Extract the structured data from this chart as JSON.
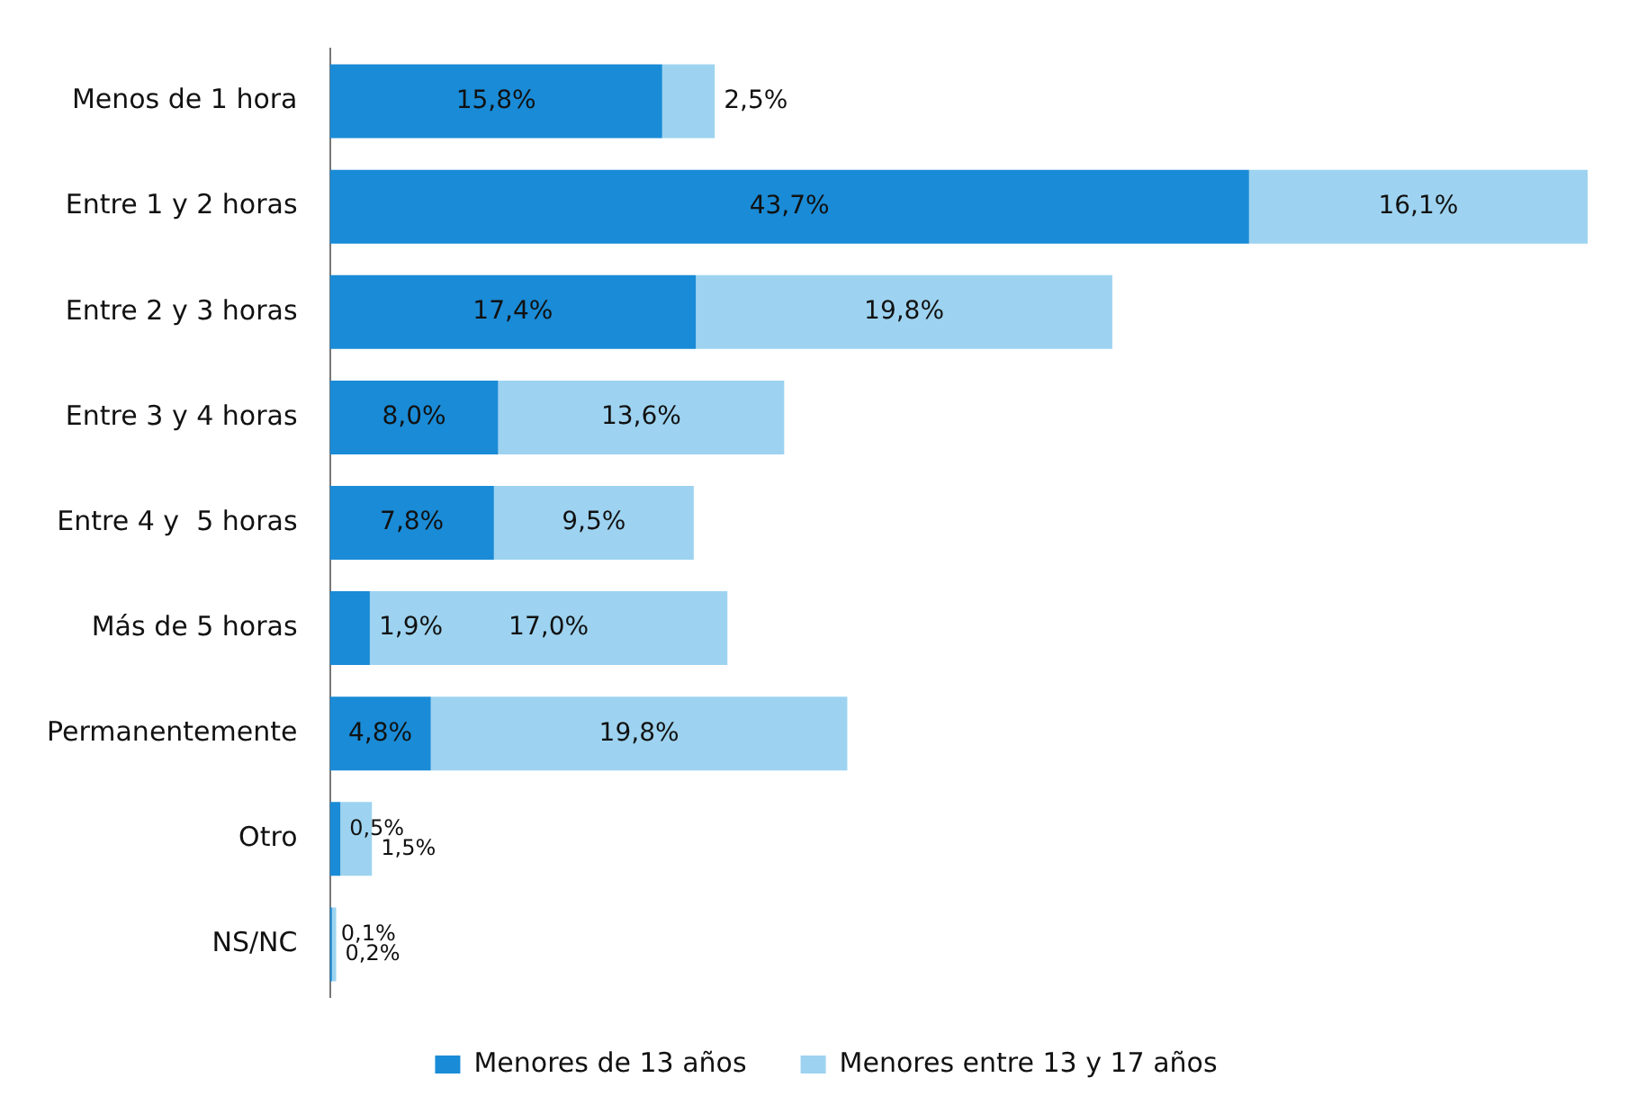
{
  "chart_data": {
    "type": "bar",
    "orientation": "horizontal",
    "stacked": true,
    "grid": false,
    "legend": "bottom",
    "categories": [
      "Menos de 1 hora",
      "Entre 1 y 2 horas",
      "Entre 2 y 3 horas",
      "Entre 3 y 4 horas",
      "Entre 4 y  5 horas",
      "Más de 5 horas",
      "Permanentemente",
      "Otro",
      "NS/NC"
    ],
    "series": [
      {
        "name": "Menores de 13 años",
        "color": "#1a8bd6",
        "values": [
          15.8,
          43.7,
          17.4,
          8.0,
          7.8,
          1.9,
          4.8,
          0.5,
          0.1
        ],
        "value_labels": [
          "15,8%",
          "43,7%",
          "17,4%",
          "8,0%",
          "7,8%",
          "1,9%",
          "4,8%",
          "0,5%",
          "0,1%"
        ]
      },
      {
        "name": "Menores entre 13 y 17 años",
        "color": "#9dd3f0",
        "values": [
          2.5,
          16.1,
          19.8,
          13.6,
          9.5,
          17.0,
          19.8,
          1.5,
          0.2
        ],
        "value_labels": [
          "2,5%",
          "16,1%",
          "19,8%",
          "13,6%",
          "9,5%",
          "17,0%",
          "19,8%",
          "1,5%",
          "0,2%"
        ]
      }
    ]
  }
}
